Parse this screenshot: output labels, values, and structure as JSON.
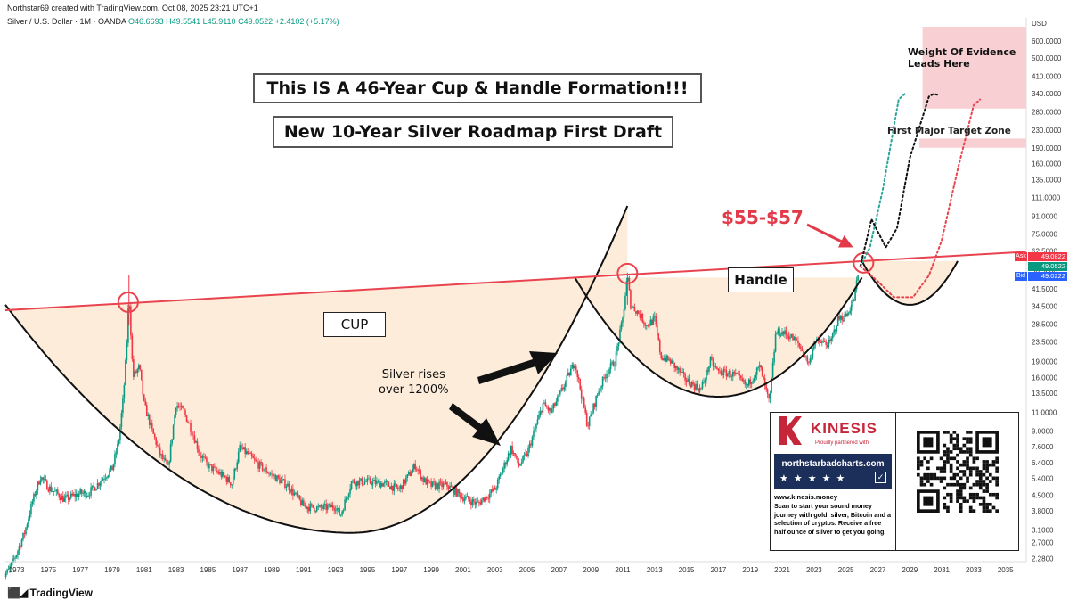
{
  "header": "Northstar69 created with TradingView.com, Oct 08, 2025 23:21 UTC+1",
  "symbol": "Silver / U.S. Dollar · 1M · OANDA",
  "ohlc": {
    "o": "O46.6693",
    "h": "H49.5541",
    "l": "L45.9110",
    "c": "C49.0522",
    "chg": "+2.4102 (+5.17%)"
  },
  "annotations": {
    "title1": "This IS A 46-Year Cup & Handle Formation!!!",
    "title2": "New 10-Year Silver Roadmap First Draft",
    "cup": "CUP",
    "handle": "Handle",
    "rises_l1": "Silver rises",
    "rises_l2": "over 1200%",
    "price_zone": "$55-$57",
    "woe_l1": "Weight Of Evidence",
    "woe_l2": "Leads Here",
    "first_target": "First Major Target Zone"
  },
  "price_tags": {
    "usd": "USD",
    "ask_label": "Ask",
    "ask": "49.0822",
    "last": "49.0522",
    "bid_label": "Bid",
    "bid": "49.0222"
  },
  "ad": {
    "brand": "KINESIS",
    "partnered": "Proudly partnered with",
    "site": "northstarbadcharts.com",
    "stars": "★★★★★",
    "web": "www.kinesis.money",
    "text": "Scan to start your sound money journey with gold, silver, Bitcoin and a selection of cryptos. Receive a free half ounce of silver to get you going."
  },
  "footer": "TradingView",
  "colors": {
    "up": "#089981",
    "down": "#f23645",
    "resistance": "#e8434e",
    "zone": "#f7c8cc"
  },
  "chart_data": {
    "type": "candlestick",
    "scale": "log",
    "ylim": [
      2.2,
      700
    ],
    "xlim": [
      1972.3,
      2036.3
    ],
    "y_ticks": [
      "2.2800",
      "2.7000",
      "3.1000",
      "3.8000",
      "4.5000",
      "5.4000",
      "6.4000",
      "7.6000",
      "9.0000",
      "11.0000",
      "13.5000",
      "16.0000",
      "19.0000",
      "23.5000",
      "28.5000",
      "34.5000",
      "41.5000",
      "50.5000",
      "62.5000",
      "75.0000",
      "91.0000",
      "111.0000",
      "135.0000",
      "160.0000",
      "190.0000",
      "230.0000",
      "280.0000",
      "340.0000",
      "410.0000",
      "500.0000",
      "600.0000"
    ],
    "x_ticks": [
      "1973",
      "1975",
      "1977",
      "1979",
      "1981",
      "1983",
      "1985",
      "1987",
      "1989",
      "1991",
      "1993",
      "1995",
      "1997",
      "1999",
      "2001",
      "2003",
      "2005",
      "2007",
      "2009",
      "2011",
      "2013",
      "2015",
      "2017",
      "2019",
      "2021",
      "2023",
      "2025",
      "2027",
      "2029",
      "2031",
      "2033",
      "2035"
    ],
    "price_path": [
      [
        1972.0,
        1.8
      ],
      [
        1972.5,
        2.0
      ],
      [
        1973.0,
        2.4
      ],
      [
        1973.5,
        3.0
      ],
      [
        1974.0,
        4.2
      ],
      [
        1974.5,
        5.5
      ],
      [
        1975.0,
        4.9
      ],
      [
        1975.5,
        4.6
      ],
      [
        1976.0,
        4.3
      ],
      [
        1977.0,
        4.6
      ],
      [
        1977.5,
        4.6
      ],
      [
        1978.0,
        5.0
      ],
      [
        1978.5,
        5.5
      ],
      [
        1979.0,
        6.0
      ],
      [
        1979.4,
        8.0
      ],
      [
        1979.7,
        13.0
      ],
      [
        1979.9,
        22.0
      ],
      [
        1980.05,
        40.0
      ],
      [
        1980.3,
        16.0
      ],
      [
        1980.7,
        18.0
      ],
      [
        1981.0,
        12.0
      ],
      [
        1981.5,
        9.0
      ],
      [
        1982.0,
        7.0
      ],
      [
        1982.5,
        6.0
      ],
      [
        1983.0,
        12.0
      ],
      [
        1983.5,
        11.0
      ],
      [
        1984.0,
        9.0
      ],
      [
        1984.5,
        7.0
      ],
      [
        1985.0,
        6.2
      ],
      [
        1986.0,
        5.5
      ],
      [
        1986.5,
        5.1
      ],
      [
        1987.0,
        7.5
      ],
      [
        1987.5,
        7.0
      ],
      [
        1988.0,
        6.4
      ],
      [
        1989.0,
        5.6
      ],
      [
        1990.0,
        5.0
      ],
      [
        1991.0,
        4.0
      ],
      [
        1992.0,
        3.9
      ],
      [
        1993.0,
        4.0
      ],
      [
        1993.3,
        3.6
      ],
      [
        1994.0,
        5.2
      ],
      [
        1995.0,
        5.2
      ],
      [
        1996.0,
        5.1
      ],
      [
        1997.0,
        4.8
      ],
      [
        1998.0,
        6.2
      ],
      [
        1998.5,
        5.3
      ],
      [
        1999.0,
        5.0
      ],
      [
        2000.0,
        5.0
      ],
      [
        2001.0,
        4.4
      ],
      [
        2001.9,
        4.1
      ],
      [
        2003.0,
        4.8
      ],
      [
        2004.0,
        7.5
      ],
      [
        2004.5,
        6.2
      ],
      [
        2005.0,
        7.0
      ],
      [
        2006.0,
        12.0
      ],
      [
        2006.5,
        11.0
      ],
      [
        2007.0,
        13.0
      ],
      [
        2008.0,
        19.0
      ],
      [
        2008.8,
        9.5
      ],
      [
        2009.5,
        14.0
      ],
      [
        2010.0,
        17.0
      ],
      [
        2010.5,
        19.0
      ],
      [
        2011.0,
        30.0
      ],
      [
        2011.3,
        48.0
      ],
      [
        2011.5,
        35.0
      ],
      [
        2012.0,
        32.0
      ],
      [
        2012.5,
        28.0
      ],
      [
        2013.0,
        30.0
      ],
      [
        2013.4,
        20.0
      ],
      [
        2014.0,
        19.0
      ],
      [
        2015.0,
        15.5
      ],
      [
        2015.9,
        14.0
      ],
      [
        2016.5,
        19.0
      ],
      [
        2017.0,
        17.0
      ],
      [
        2018.0,
        16.5
      ],
      [
        2018.8,
        14.5
      ],
      [
        2019.0,
        15.5
      ],
      [
        2019.6,
        18.0
      ],
      [
        2020.2,
        12.0
      ],
      [
        2020.6,
        26.0
      ],
      [
        2021.0,
        26.0
      ],
      [
        2021.5,
        25.0
      ],
      [
        2022.0,
        23.0
      ],
      [
        2022.7,
        18.5
      ],
      [
        2023.0,
        23.5
      ],
      [
        2024.0,
        23.0
      ],
      [
        2024.5,
        30.0
      ],
      [
        2025.0,
        31.0
      ],
      [
        2025.5,
        37.0
      ],
      [
        2025.77,
        49.05
      ]
    ],
    "cup_arc": {
      "center_x": 1994.0,
      "y_at_1972.3": 35,
      "bottom": 3.0,
      "y_at_2011": 90
    },
    "handle_arc": {
      "left_x": 2008.0,
      "right_x": 2026.0,
      "bottom": 13.0
    },
    "projected_handle_arc": {
      "left_x": 2026.0,
      "right_x": 2032.0,
      "bottom": 35
    },
    "resistance_line": [
      [
        1972.3,
        33
      ],
      [
        2036.3,
        62
      ]
    ],
    "circles": [
      [
        1980.0,
        36
      ],
      [
        2011.3,
        49
      ],
      [
        2026.1,
        55
      ]
    ],
    "projections": [
      {
        "color": "teal",
        "path": [
          [
            2025.9,
            53
          ],
          [
            2026.5,
            65
          ],
          [
            2027.3,
            120
          ],
          [
            2028.3,
            320
          ],
          [
            2028.7,
            340
          ]
        ]
      },
      {
        "color": "black",
        "path": [
          [
            2025.9,
            53
          ],
          [
            2026.6,
            88
          ],
          [
            2027.5,
            65
          ],
          [
            2028.2,
            80
          ],
          [
            2029.0,
            170
          ],
          [
            2030.2,
            330
          ],
          [
            2030.5,
            340
          ],
          [
            2030.8,
            335
          ]
        ]
      },
      {
        "color": "red",
        "path": [
          [
            2025.9,
            53
          ],
          [
            2027.0,
            45
          ],
          [
            2028.0,
            38
          ],
          [
            2029.2,
            38
          ],
          [
            2030.2,
            48
          ],
          [
            2031.0,
            70
          ],
          [
            2032.0,
            150
          ],
          [
            2033.0,
            300
          ],
          [
            2033.4,
            320
          ]
        ]
      }
    ],
    "target_zones": [
      {
        "name": "Weight Of Evidence",
        "from": 290,
        "to": 700,
        "x_from": 2029.8,
        "x_to": 2036.3
      },
      {
        "name": "First Major Target Zone",
        "from": 190,
        "to": 210,
        "x_from": 2029.6,
        "x_to": 2036.3
      }
    ]
  }
}
